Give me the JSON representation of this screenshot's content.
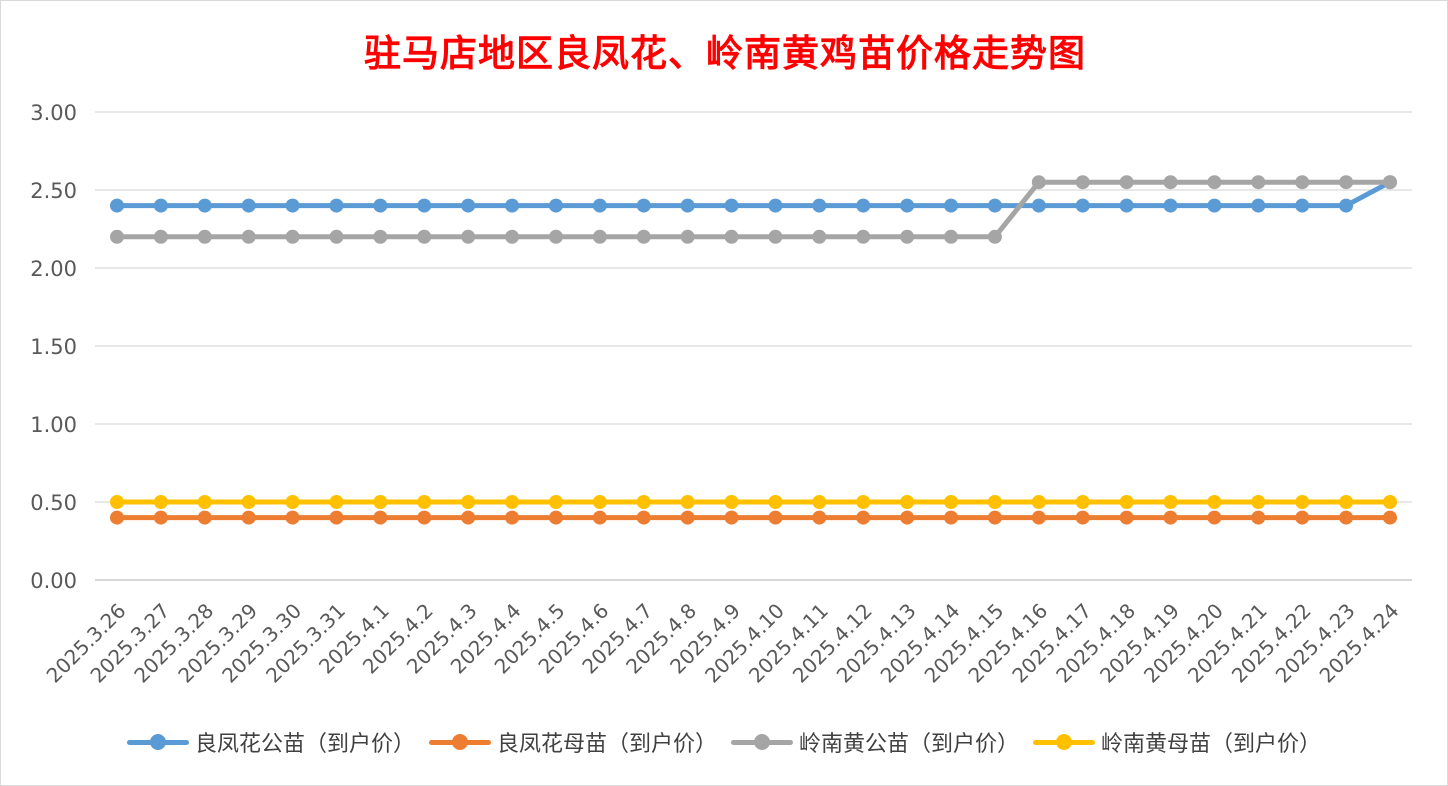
{
  "chart_data": {
    "type": "line",
    "title": "驻马店地区良凤花、岭南黄鸡苗价格走势图",
    "xlabel": "",
    "ylabel": "",
    "ylim": [
      0,
      3
    ],
    "yticks": [
      "0.00",
      "0.50",
      "1.00",
      "1.50",
      "2.00",
      "2.50",
      "3.00"
    ],
    "grid": true,
    "legend_position": "bottom",
    "categories": [
      "2025.3.26",
      "2025.3.27",
      "2025.3.28",
      "2025.3.29",
      "2025.3.30",
      "2025.3.31",
      "2025.4.1",
      "2025.4.2",
      "2025.4.3",
      "2025.4.4",
      "2025.4.5",
      "2025.4.6",
      "2025.4.7",
      "2025.4.8",
      "2025.4.9",
      "2025.4.10",
      "2025.4.11",
      "2025.4.12",
      "2025.4.13",
      "2025.4.14",
      "2025.4.15",
      "2025.4.16",
      "2025.4.17",
      "2025.4.18",
      "2025.4.19",
      "2025.4.20",
      "2025.4.21",
      "2025.4.22",
      "2025.4.23",
      "2025.4.24"
    ],
    "series": [
      {
        "name": "良凤花公苗（到户价）",
        "color": "#5b9bd5",
        "values": [
          2.4,
          2.4,
          2.4,
          2.4,
          2.4,
          2.4,
          2.4,
          2.4,
          2.4,
          2.4,
          2.4,
          2.4,
          2.4,
          2.4,
          2.4,
          2.4,
          2.4,
          2.4,
          2.4,
          2.4,
          2.4,
          2.4,
          2.4,
          2.4,
          2.4,
          2.4,
          2.4,
          2.4,
          2.4,
          2.55
        ]
      },
      {
        "name": "良凤花母苗（到户价）",
        "color": "#ed7d31",
        "values": [
          0.4,
          0.4,
          0.4,
          0.4,
          0.4,
          0.4,
          0.4,
          0.4,
          0.4,
          0.4,
          0.4,
          0.4,
          0.4,
          0.4,
          0.4,
          0.4,
          0.4,
          0.4,
          0.4,
          0.4,
          0.4,
          0.4,
          0.4,
          0.4,
          0.4,
          0.4,
          0.4,
          0.4,
          0.4,
          0.4
        ]
      },
      {
        "name": "岭南黄公苗（到户价）",
        "color": "#a5a5a5",
        "values": [
          2.2,
          2.2,
          2.2,
          2.2,
          2.2,
          2.2,
          2.2,
          2.2,
          2.2,
          2.2,
          2.2,
          2.2,
          2.2,
          2.2,
          2.2,
          2.2,
          2.2,
          2.2,
          2.2,
          2.2,
          2.2,
          2.55,
          2.55,
          2.55,
          2.55,
          2.55,
          2.55,
          2.55,
          2.55,
          2.55
        ]
      },
      {
        "name": "岭南黄母苗（到户价）",
        "color": "#ffc000",
        "values": [
          0.5,
          0.5,
          0.5,
          0.5,
          0.5,
          0.5,
          0.5,
          0.5,
          0.5,
          0.5,
          0.5,
          0.5,
          0.5,
          0.5,
          0.5,
          0.5,
          0.5,
          0.5,
          0.5,
          0.5,
          0.5,
          0.5,
          0.5,
          0.5,
          0.5,
          0.5,
          0.5,
          0.5,
          0.5,
          0.5
        ]
      }
    ]
  }
}
